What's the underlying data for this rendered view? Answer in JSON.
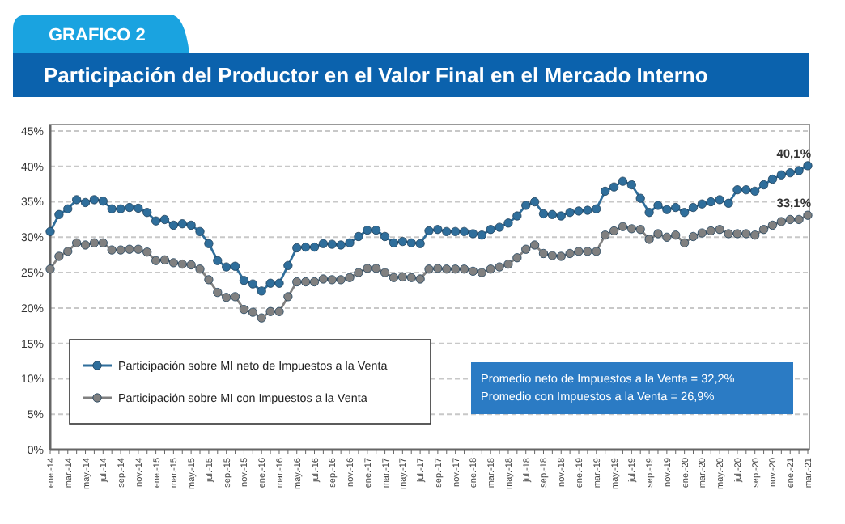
{
  "chart_data": {
    "type": "line",
    "subtitle": "GRAFICO 2",
    "title": "Participación del Productor en el Valor Final en el Mercado Interno",
    "categories": [
      "ene.-14",
      null,
      "mar.-14",
      null,
      "may.-14",
      null,
      "jul.-14",
      null,
      "sep.-14",
      null,
      "nov.-14",
      null,
      "ene.-15",
      null,
      "mar.-15",
      null,
      "may.-15",
      null,
      "jul.-15",
      null,
      "sep.-15",
      null,
      "nov.-15",
      null,
      "ene.-16",
      null,
      "mar.-16",
      null,
      "may.-16",
      null,
      "jul.-16",
      null,
      "sep.-16",
      null,
      "nov.-16",
      null,
      "ene.-17",
      null,
      "mar.-17",
      null,
      "may.-17",
      null,
      "jul.-17",
      null,
      "sep.-17",
      null,
      "nov.-17",
      null,
      "ene.-18",
      null,
      "mar.-18",
      null,
      "may.-18",
      null,
      "jul.-18",
      null,
      "sep.-18",
      null,
      "nov.-18",
      null,
      "ene.-19",
      null,
      "mar.-19",
      null,
      "may.-19",
      null,
      "jul.-19",
      null,
      "sep.-19",
      null,
      "nov.-19",
      null,
      "ene.-20",
      null,
      "mar.-20",
      null,
      "may.-20",
      null,
      "jul.-20",
      null,
      "sep.-20",
      null,
      "nov.-20",
      null,
      "ene.-21",
      null,
      "mar.-21"
    ],
    "series": [
      {
        "name": "Participación sobre MI neto de Impuestos a la Venta",
        "color": "#2f6e9b",
        "values": [
          30.8,
          33.2,
          34,
          35.3,
          34.9,
          35.3,
          35.1,
          34,
          34,
          34.2,
          34.1,
          33.5,
          32.3,
          32.5,
          31.7,
          31.9,
          31.7,
          30.8,
          29.1,
          26.7,
          25.8,
          25.9,
          23.9,
          23.4,
          22.4,
          23.5,
          23.5,
          26,
          28.5,
          28.6,
          28.6,
          29.1,
          29,
          28.9,
          29.2,
          30.1,
          31,
          31,
          30.1,
          29.2,
          29.4,
          29.2,
          29.1,
          30.9,
          31.1,
          30.8,
          30.8,
          30.8,
          30.5,
          30.3,
          31.1,
          31.4,
          32,
          33,
          34.5,
          35,
          33.3,
          33.2,
          33,
          33.5,
          33.7,
          33.8,
          34,
          36.5,
          37.1,
          37.9,
          37.4,
          35.5,
          33.5,
          34.5,
          33.9,
          34.2,
          33.5,
          34.2,
          34.7,
          35,
          35.3,
          34.8,
          36.7,
          36.7,
          36.5,
          37.4,
          38.2,
          38.8,
          39.1,
          39.4,
          40.1
        ]
      },
      {
        "name": "Participación sobre MI con Impuestos a la Venta",
        "color": "#808080",
        "values": [
          25.5,
          27.3,
          28,
          29.2,
          28.9,
          29.2,
          29.2,
          28.2,
          28.2,
          28.3,
          28.3,
          27.9,
          26.7,
          26.8,
          26.4,
          26.2,
          26.1,
          25.5,
          24,
          22.2,
          21.5,
          21.6,
          19.8,
          19.4,
          18.6,
          19.5,
          19.5,
          21.6,
          23.7,
          23.7,
          23.7,
          24.1,
          24,
          24,
          24.3,
          25,
          25.6,
          25.6,
          25,
          24.3,
          24.4,
          24.3,
          24.1,
          25.5,
          25.6,
          25.5,
          25.5,
          25.5,
          25.2,
          25,
          25.5,
          25.8,
          26.2,
          27.1,
          28.3,
          28.9,
          27.7,
          27.4,
          27.3,
          27.7,
          28,
          28,
          28,
          30.3,
          30.9,
          31.5,
          31.2,
          31.1,
          29.7,
          30.5,
          30,
          30.3,
          29.2,
          30.1,
          30.6,
          30.9,
          31.1,
          30.5,
          30.5,
          30.5,
          30.3,
          31.1,
          31.7,
          32.2,
          32.5,
          32.5,
          33.1
        ]
      }
    ],
    "ylim": [
      0,
      45
    ],
    "yticks": [
      {
        "value": 0,
        "label": "0%"
      },
      {
        "value": 5,
        "label": "5%"
      },
      {
        "value": 10,
        "label": "10%"
      },
      {
        "value": 15,
        "label": "15%"
      },
      {
        "value": 20,
        "label": "20%"
      },
      {
        "value": 25,
        "label": "25%"
      },
      {
        "value": 30,
        "label": "30%"
      },
      {
        "value": 35,
        "label": "35%"
      },
      {
        "value": 40,
        "label": "40%"
      },
      {
        "value": 45,
        "label": "45%"
      }
    ],
    "grid": "y",
    "legend": "bottom left",
    "marker": "circle",
    "line_style": "solid",
    "annotations": [
      {
        "text": "40,1%",
        "x": "mar.-21",
        "y": 40.1
      },
      {
        "text": "33,1%",
        "x": "mar.-21",
        "y": 33.1
      },
      "Promedio neto de Impuestos a la Venta = 32,2%",
      "Promedio con Impuestos a la Venta = 26,9%"
    ]
  }
}
